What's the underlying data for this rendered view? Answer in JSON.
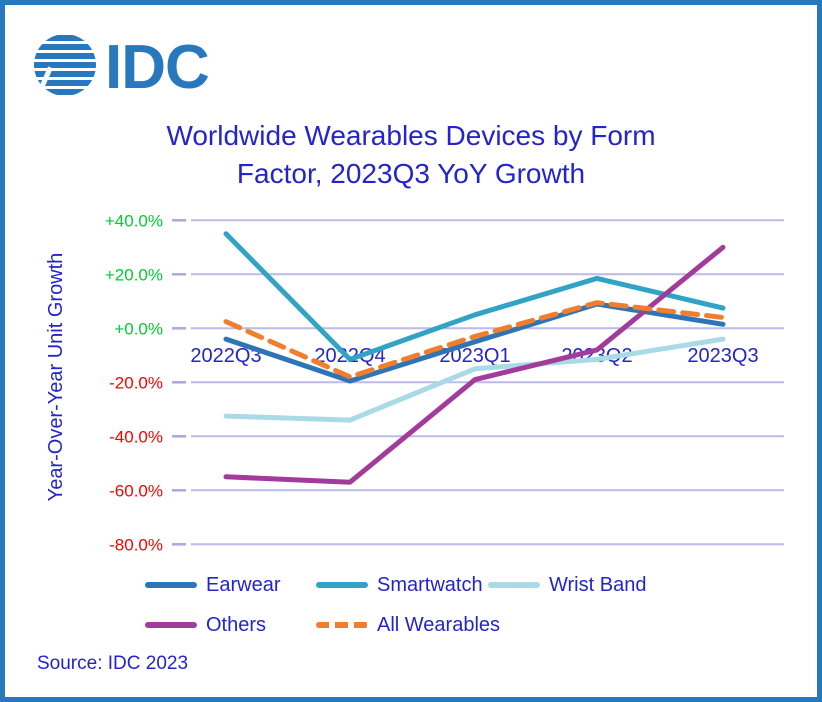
{
  "logo": {
    "text": "IDC",
    "color": "#2878BE"
  },
  "title": {
    "line1": "Worldwide Wearables Devices by Form",
    "line2": "Factor, 2023Q3 YoY Growth",
    "color": "#2424CC"
  },
  "source": "Source: IDC 2023",
  "chart_data": {
    "type": "line",
    "title": "Worldwide Wearables Devices by Form Factor, 2023Q3 YoY Growth",
    "xlabel": "",
    "ylabel": "Year-Over-Year Unit Growth",
    "categories": [
      "2022Q3",
      "2022Q4",
      "2023Q1",
      "2023Q2",
      "2023Q3"
    ],
    "series": [
      {
        "name": "Earwear",
        "color": "#2E75B6",
        "dash": false,
        "values": [
          -4,
          -19.5,
          -5,
          9,
          1.5
        ]
      },
      {
        "name": "Smartwatch",
        "color": "#31A3C4",
        "dash": false,
        "values": [
          35,
          -11.5,
          5,
          18.5,
          7.5
        ]
      },
      {
        "name": "Wrist Band",
        "color": "#A9DAE8",
        "dash": false,
        "values": [
          -32.5,
          -34,
          -15,
          -11.5,
          -4
        ]
      },
      {
        "name": "Others",
        "color": "#A13C9B",
        "dash": false,
        "values": [
          -55,
          -57,
          -19,
          -8,
          30
        ]
      },
      {
        "name": "All Wearables",
        "color": "#F07E2D",
        "dash": true,
        "values": [
          2.5,
          -18,
          -3,
          9.5,
          4
        ]
      }
    ],
    "draw_order": [
      "Wrist Band",
      "Smartwatch",
      "Earwear",
      "Others",
      "All Wearables"
    ],
    "yticks": [
      {
        "label": "+40.0%",
        "value": 40
      },
      {
        "label": "+20.0%",
        "value": 20
      },
      {
        "label": "+0.0%",
        "value": 0
      },
      {
        "label": "-20.0%",
        "value": -20
      },
      {
        "label": "-40.0%",
        "value": -40
      },
      {
        "label": "-60.0%",
        "value": -60
      },
      {
        "label": "-80.0%",
        "value": -80
      }
    ],
    "ylim": [
      -80,
      40
    ],
    "grid": true,
    "legend_position": "bottom",
    "colors": {
      "positive_tick": "#00CC33",
      "negative_tick": "#FF0000",
      "gridline": "#BBBAE8",
      "tick_dash": "#A9A8DF",
      "axis_text": "#2424CC"
    }
  },
  "legend_rows": [
    [
      "Earwear",
      "Smartwatch",
      "Wrist Band"
    ],
    [
      "Others",
      "All Wearables"
    ]
  ]
}
